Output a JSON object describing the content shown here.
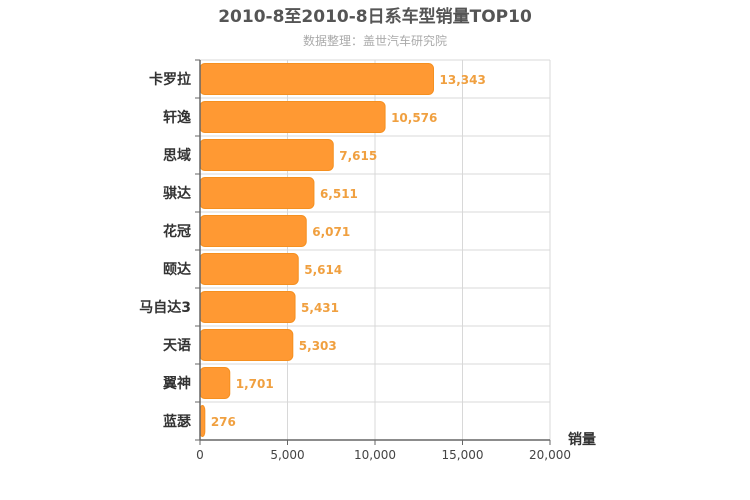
{
  "chart_data": {
    "type": "bar",
    "orientation": "horizontal",
    "title": "2010-8至2010-8日系车型销量TOP10",
    "subtitle": "数据整理：盖世汽车研究院",
    "xlabel": "销量",
    "ylabel": "",
    "xlim": [
      0,
      20000
    ],
    "x_ticks": [
      "0",
      "5,000",
      "10,000",
      "15,000",
      "20,000"
    ],
    "x_tick_values": [
      0,
      5000,
      10000,
      15000,
      20000
    ],
    "categories": [
      "卡罗拉",
      "轩逸",
      "思域",
      "骐达",
      "花冠",
      "颐达",
      "马自达3",
      "天语",
      "翼神",
      "蓝瑟"
    ],
    "values": [
      13343,
      10576,
      7615,
      6511,
      6071,
      5614,
      5431,
      5303,
      1701,
      276
    ],
    "value_labels": [
      "13,343",
      "10,576",
      "7,615",
      "6,511",
      "6,071",
      "5,614",
      "5,431",
      "5,303",
      "1,701",
      "276"
    ],
    "grid": true,
    "legend": "none",
    "colors": {
      "bar": "#ff9933",
      "bar_stroke": "#f59020",
      "value_label": "#f0a040",
      "title": "#555555",
      "subtitle": "#aaaaaa",
      "axis": "#666666",
      "grid": "#d8d8d8",
      "category_label": "#333333"
    }
  }
}
